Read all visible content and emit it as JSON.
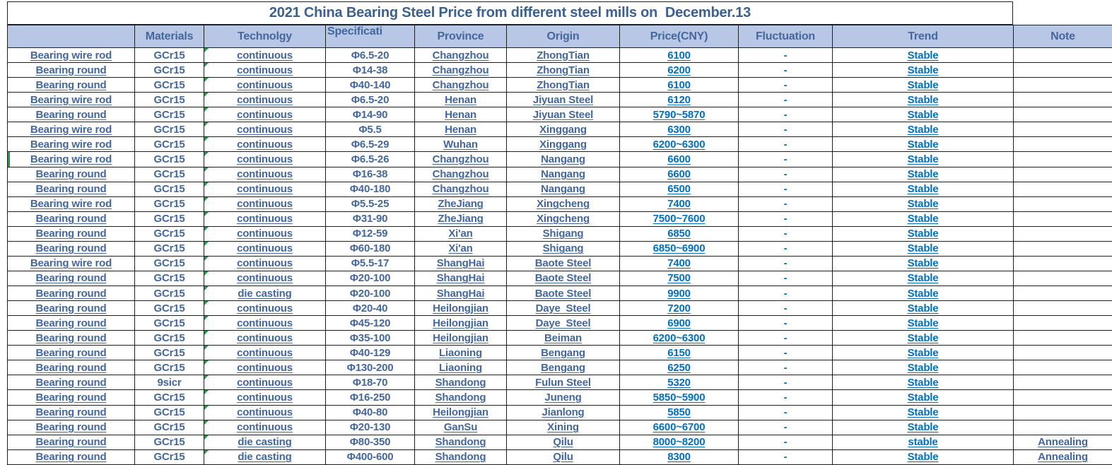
{
  "title": "2021 China Bearing Steel Price from different steel mills on  December.13",
  "colors": {
    "header_bg": "#B8C7E5",
    "steel_text": "#44679C",
    "bright_blue": "#0070C0",
    "title_text": "#3A6191",
    "grid_line": "#1F1F1F",
    "error_indicator_green": "#1E9E40"
  },
  "icons": {
    "error_indicator": "excel-error-triangle-icon"
  },
  "table": {
    "columns": [
      "",
      "Materials",
      "Technolgy",
      "Specificati",
      "Province",
      "Origin",
      "Price(CNY)",
      "Fluctuation",
      "Trend",
      "Note"
    ],
    "rows": [
      {
        "item": "Bearing wire rod",
        "material": "GCr15",
        "technology": "continuous",
        "specification": "Φ6.5-20",
        "province": "Changzhou",
        "origin": "ZhongTian",
        "price": "6100",
        "fluctuation": "-",
        "trend": "Stable",
        "note": ""
      },
      {
        "item": "Bearing round",
        "material": "GCr15",
        "technology": "continuous",
        "specification": "Φ14-38",
        "province": "Changzhou",
        "origin": "ZhongTian",
        "price": "6200",
        "fluctuation": "-",
        "trend": "Stable",
        "note": ""
      },
      {
        "item": "Bearing round",
        "material": "GCr15",
        "technology": "continuous",
        "specification": "Φ40-140",
        "province": "Changzhou",
        "origin": "ZhongTian",
        "price": "6100",
        "fluctuation": "-",
        "trend": "Stable",
        "note": ""
      },
      {
        "item": "Bearing wire rod",
        "material": "GCr15",
        "technology": "continuous",
        "specification": "Φ6.5-20",
        "province": "Henan",
        "origin": "Jiyuan Steel",
        "price": "6120",
        "fluctuation": "-",
        "trend": "Stable",
        "note": ""
      },
      {
        "item": "Bearing round",
        "material": "GCr15",
        "technology": "continuous",
        "specification": "Φ14-90",
        "province": "Henan",
        "origin": "Jiyuan Steel",
        "price": "5790~5870",
        "fluctuation": "-",
        "trend": "Stable",
        "note": ""
      },
      {
        "item": "Bearing wire rod",
        "material": "GCr15",
        "technology": "continuous",
        "specification": "Φ5.5",
        "province": "Henan",
        "origin": "Xinggang",
        "price": "6300",
        "fluctuation": "-",
        "trend": "Stable",
        "note": ""
      },
      {
        "item": "Bearing wire rod",
        "material": "GCr15",
        "technology": "continuous",
        "specification": "Φ6.5-29",
        "province": "Wuhan",
        "origin": "Xinggang",
        "price": "6200~6300",
        "fluctuation": "-",
        "trend": "Stable",
        "note": ""
      },
      {
        "item": "Bearing wire rod",
        "material": "GCr15",
        "technology": "continuous",
        "specification": "Φ6.5-26",
        "province": "Changzhou",
        "origin": "Nangang",
        "price": "6600",
        "fluctuation": "-",
        "trend": "Stable",
        "note": "",
        "green_marker": true
      },
      {
        "item": "Bearing round",
        "material": "GCr15",
        "technology": "continuous",
        "specification": "Φ16-38",
        "province": "Changzhou",
        "origin": "Nangang",
        "price": "6600",
        "fluctuation": "-",
        "trend": "Stable",
        "note": ""
      },
      {
        "item": "Bearing round",
        "material": "GCr15",
        "technology": "continuous",
        "specification": "Φ40-180",
        "province": "Changzhou",
        "origin": "Nangang",
        "price": "6500",
        "fluctuation": "-",
        "trend": "Stable",
        "note": ""
      },
      {
        "item": "Bearing wire rod",
        "material": "GCr15",
        "technology": "continuous",
        "specification": "Φ5.5-25",
        "province": "ZheJiang",
        "origin": "Xingcheng",
        "price": "7400",
        "fluctuation": "-",
        "trend": "Stable",
        "note": ""
      },
      {
        "item": "Bearing round",
        "material": "GCr15",
        "technology": "continuous",
        "specification": "Φ31-90",
        "province": "ZheJiang",
        "origin": "Xingcheng",
        "price": "7500~7600",
        "fluctuation": "-",
        "trend": "Stable",
        "note": ""
      },
      {
        "item": "Bearing round",
        "material": "GCr15",
        "technology": "continuous",
        "specification": "Φ12-59",
        "province": "Xi'an",
        "origin": "Shigang",
        "price": "6850",
        "fluctuation": "-",
        "trend": "Stable",
        "note": ""
      },
      {
        "item": "Bearing round",
        "material": "GCr15",
        "technology": "continuous",
        "specification": "Φ60-180",
        "province": "Xi'an",
        "origin": "Shigang",
        "price": "6850~6900",
        "fluctuation": "-",
        "trend": "Stable",
        "note": ""
      },
      {
        "item": "Bearing wire rod",
        "material": "GCr15",
        "technology": "continuous",
        "specification": "Φ5.5-17",
        "province": "ShangHai",
        "origin": "Baote Steel",
        "price": "7400",
        "fluctuation": "-",
        "trend": "Stable",
        "note": ""
      },
      {
        "item": "Bearing round",
        "material": "GCr15",
        "technology": "continuous",
        "specification": "Φ20-100",
        "province": "ShangHai",
        "origin": "Baote Steel",
        "price": "7500",
        "fluctuation": "-",
        "trend": "Stable",
        "note": ""
      },
      {
        "item": "Bearing round",
        "material": "GCr15",
        "technology": "die casting",
        "specification": "Φ20-100",
        "province": "ShangHai",
        "origin": "Baote Steel",
        "price": "9900",
        "fluctuation": "-",
        "trend": "Stable",
        "note": ""
      },
      {
        "item": "Bearing round",
        "material": "GCr15",
        "technology": "continuous",
        "specification": "Φ20-40",
        "province": "Heilongjian",
        "origin": "Daye  Steel",
        "price": "7200",
        "fluctuation": "-",
        "trend": "Stable",
        "note": ""
      },
      {
        "item": "Bearing round",
        "material": "GCr15",
        "technology": "continuous",
        "specification": "Φ45-120",
        "province": "Heilongjian",
        "origin": "Daye  Steel",
        "price": "6900",
        "fluctuation": "-",
        "trend": "Stable",
        "note": ""
      },
      {
        "item": "Bearing round",
        "material": "GCr15",
        "technology": "continuous",
        "specification": "Φ35-100",
        "province": "Heilongjian",
        "origin": "Beiman",
        "price": "6200~6300",
        "fluctuation": "-",
        "trend": "Stable",
        "note": ""
      },
      {
        "item": "Bearing round",
        "material": "GCr15",
        "technology": "continuous",
        "specification": "Φ40-129",
        "province": "Liaoning",
        "origin": "Bengang",
        "price": "6150",
        "fluctuation": "-",
        "trend": "Stable",
        "note": ""
      },
      {
        "item": "Bearing round",
        "material": "GCr15",
        "technology": "continuous",
        "specification": "Φ130-200",
        "province": "Liaoning",
        "origin": "Bengang",
        "price": "6250",
        "fluctuation": "-",
        "trend": "Stable",
        "note": ""
      },
      {
        "item": "Bearing round",
        "material": "9sicr",
        "technology": "continuous",
        "specification": "Φ18-70",
        "province": "Shandong",
        "origin": "Fulun Steel",
        "price": "5320",
        "fluctuation": "-",
        "trend": "Stable",
        "note": ""
      },
      {
        "item": "Bearing round",
        "material": "GCr15",
        "technology": "continuous",
        "specification": "Φ16-250",
        "province": "Shandong",
        "origin": "Juneng",
        "price": "5850~5900",
        "fluctuation": "-",
        "trend": "Stable",
        "note": ""
      },
      {
        "item": "Bearing round",
        "material": "GCr15",
        "technology": "continuous",
        "specification": "Φ40-80",
        "province": "Heilongjian",
        "origin": "Jianlong",
        "price": "5850",
        "fluctuation": "-",
        "trend": "Stable",
        "note": ""
      },
      {
        "item": "Bearing round",
        "material": "GCr15",
        "technology": "continuous",
        "specification": "Φ20-130",
        "province": "GanSu",
        "origin": "Xining",
        "price": "6600~6700",
        "fluctuation": "-",
        "trend": "Stable",
        "note": ""
      },
      {
        "item": "Bearing round",
        "material": "GCr15",
        "technology": "die casting",
        "specification": "Φ80-350",
        "province": "Shandong",
        "origin": "Qilu",
        "price": "8000~8200",
        "fluctuation": "-",
        "trend": "stable",
        "note": "Annealing"
      },
      {
        "item": "Bearing round",
        "material": "GCr15",
        "technology": "die casting",
        "specification": "Φ400-600",
        "province": "Shandong",
        "origin": "Qilu",
        "price": "8300",
        "fluctuation": "-",
        "trend": "Stable",
        "note": "Annealing"
      }
    ]
  }
}
